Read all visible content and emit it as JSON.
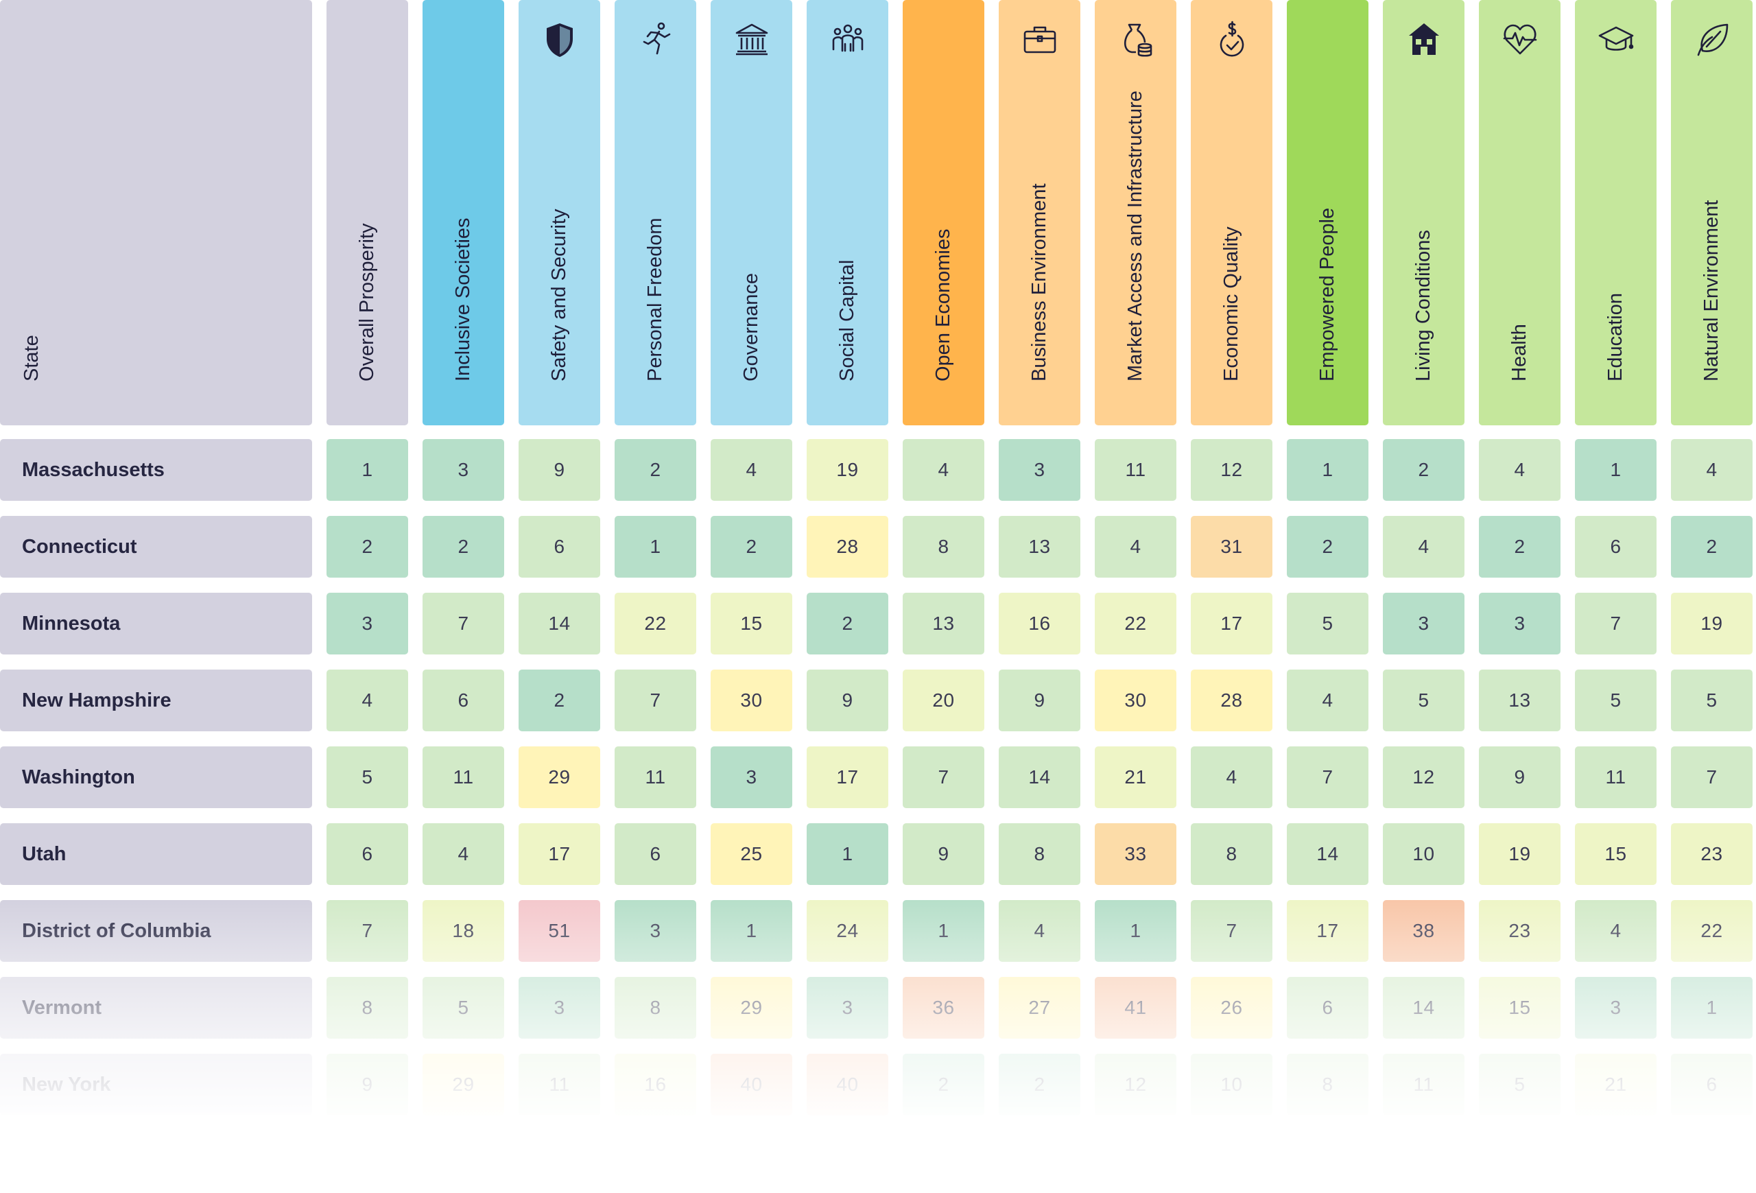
{
  "chart_data": {
    "type": "table",
    "row_header_label": "State",
    "columns": [
      {
        "key": "overall",
        "label": "Overall Prosperity",
        "icon": "",
        "group": "overall"
      },
      {
        "key": "inclusive",
        "label": "Inclusive Societies",
        "icon": "",
        "group": "inclusive",
        "pillar": true
      },
      {
        "key": "safety",
        "label": "Safety and Security",
        "icon": "shield-icon",
        "group": "inclusive"
      },
      {
        "key": "freedom",
        "label": "Personal Freedom",
        "icon": "running-person-icon",
        "group": "inclusive"
      },
      {
        "key": "governance",
        "label": "Governance",
        "icon": "government-building-icon",
        "group": "inclusive"
      },
      {
        "key": "social",
        "label": "Social Capital",
        "icon": "people-group-icon",
        "group": "inclusive"
      },
      {
        "key": "open",
        "label": "Open Economies",
        "icon": "",
        "group": "open",
        "pillar": true
      },
      {
        "key": "business",
        "label": "Business Environment",
        "icon": "briefcase-icon",
        "group": "open"
      },
      {
        "key": "market",
        "label": "Market Access and Infrastructure",
        "icon": "money-bag-icon",
        "group": "open"
      },
      {
        "key": "economic",
        "label": "Economic Quality",
        "icon": "dollar-check-icon",
        "group": "open"
      },
      {
        "key": "empowered",
        "label": "Empowered People",
        "icon": "",
        "group": "empowered",
        "pillar": true
      },
      {
        "key": "living",
        "label": "Living Conditions",
        "icon": "house-icon",
        "group": "empowered"
      },
      {
        "key": "health",
        "label": "Health",
        "icon": "heart-pulse-icon",
        "group": "empowered"
      },
      {
        "key": "education",
        "label": "Education",
        "icon": "graduation-cap-icon",
        "group": "empowered"
      },
      {
        "key": "natural",
        "label": "Natural Environment",
        "icon": "leaf-icon",
        "group": "empowered"
      }
    ],
    "rows": [
      {
        "state": "Massachusetts",
        "values": [
          1,
          3,
          9,
          2,
          4,
          19,
          4,
          3,
          11,
          12,
          1,
          2,
          4,
          1,
          4
        ]
      },
      {
        "state": "Connecticut",
        "values": [
          2,
          2,
          6,
          1,
          2,
          28,
          8,
          13,
          4,
          31,
          2,
          4,
          2,
          6,
          2
        ]
      },
      {
        "state": "Minnesota",
        "values": [
          3,
          7,
          14,
          22,
          15,
          2,
          13,
          16,
          22,
          17,
          5,
          3,
          3,
          7,
          19
        ]
      },
      {
        "state": "New Hampshire",
        "values": [
          4,
          6,
          2,
          7,
          30,
          9,
          20,
          9,
          30,
          28,
          4,
          5,
          13,
          5,
          5
        ]
      },
      {
        "state": "Washington",
        "values": [
          5,
          11,
          29,
          11,
          3,
          17,
          7,
          14,
          21,
          4,
          7,
          12,
          9,
          11,
          7
        ]
      },
      {
        "state": "Utah",
        "values": [
          6,
          4,
          17,
          6,
          25,
          1,
          9,
          8,
          33,
          8,
          14,
          10,
          19,
          15,
          23
        ]
      },
      {
        "state": "District of Columbia",
        "values": [
          7,
          18,
          51,
          3,
          1,
          24,
          1,
          4,
          1,
          7,
          17,
          38,
          23,
          4,
          22
        ]
      },
      {
        "state": "Vermont",
        "values": [
          8,
          5,
          3,
          8,
          29,
          3,
          36,
          27,
          41,
          26,
          6,
          14,
          15,
          3,
          1
        ]
      },
      {
        "state": "New York",
        "values": [
          9,
          29,
          11,
          16,
          40,
          40,
          2,
          2,
          12,
          10,
          8,
          11,
          5,
          21,
          6
        ]
      }
    ],
    "value_range": [
      1,
      51
    ],
    "group_colors": {
      "overall": "#d3d1df",
      "inclusive": "#a6dcf0",
      "inclusive_pillar": "#6ecae8",
      "open": "#ffd191",
      "open_pillar": "#ffb44c",
      "empowered": "#c5e79c",
      "empowered_pillar": "#9fd95a"
    },
    "cell_color_scale": [
      "#b6dfc9",
      "#d2eac8",
      "#eef5c6",
      "#fff4b8",
      "#fcdca8",
      "#f8c6a8",
      "#f4c8cc"
    ]
  }
}
